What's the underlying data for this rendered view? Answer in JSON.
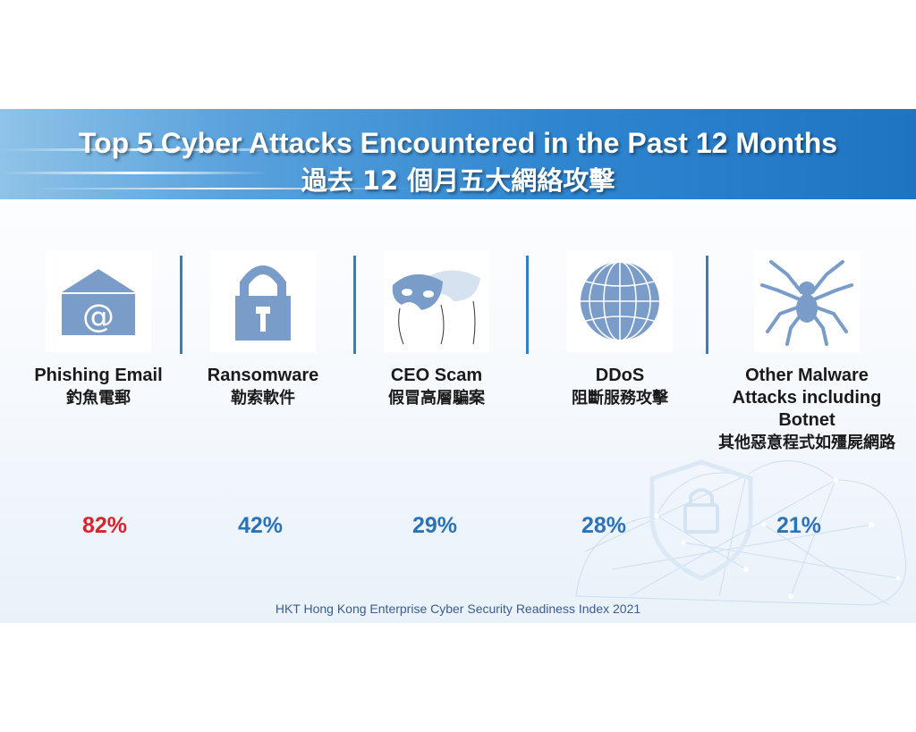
{
  "title": {
    "en": "Top 5 Cyber Attacks Encountered in the Past 12 Months",
    "zh": "過去 12 個月五大網絡攻擊"
  },
  "attacks": [
    {
      "label_en": "Phishing Email",
      "label_zh": "釣魚電郵",
      "percent": "82%",
      "icon": "envelope-at-icon",
      "color": "#d8232a"
    },
    {
      "label_en": "Ransomware",
      "label_zh": "勒索軟件",
      "percent": "42%",
      "icon": "padlock-icon",
      "color": "#2b73b8"
    },
    {
      "label_en": "CEO Scam",
      "label_zh": "假冒高層騙案",
      "percent": "29%",
      "icon": "mask-icon",
      "color": "#2b73b8"
    },
    {
      "label_en": "DDoS",
      "label_zh": "阻斷服務攻擊",
      "percent": "28%",
      "icon": "globe-icon",
      "color": "#2b73b8"
    },
    {
      "label_en": "Other Malware Attacks including Botnet",
      "label_zh": "其他惡意程式如殭屍網路",
      "percent": "21%",
      "icon": "spider-icon",
      "color": "#2b73b8"
    }
  ],
  "source": "HKT Hong Kong Enterprise Cyber Security Readiness Index 2021",
  "colors": {
    "icon": "#7a9cc8",
    "banner": "#2f86d0",
    "divider": "#2f80c9"
  }
}
